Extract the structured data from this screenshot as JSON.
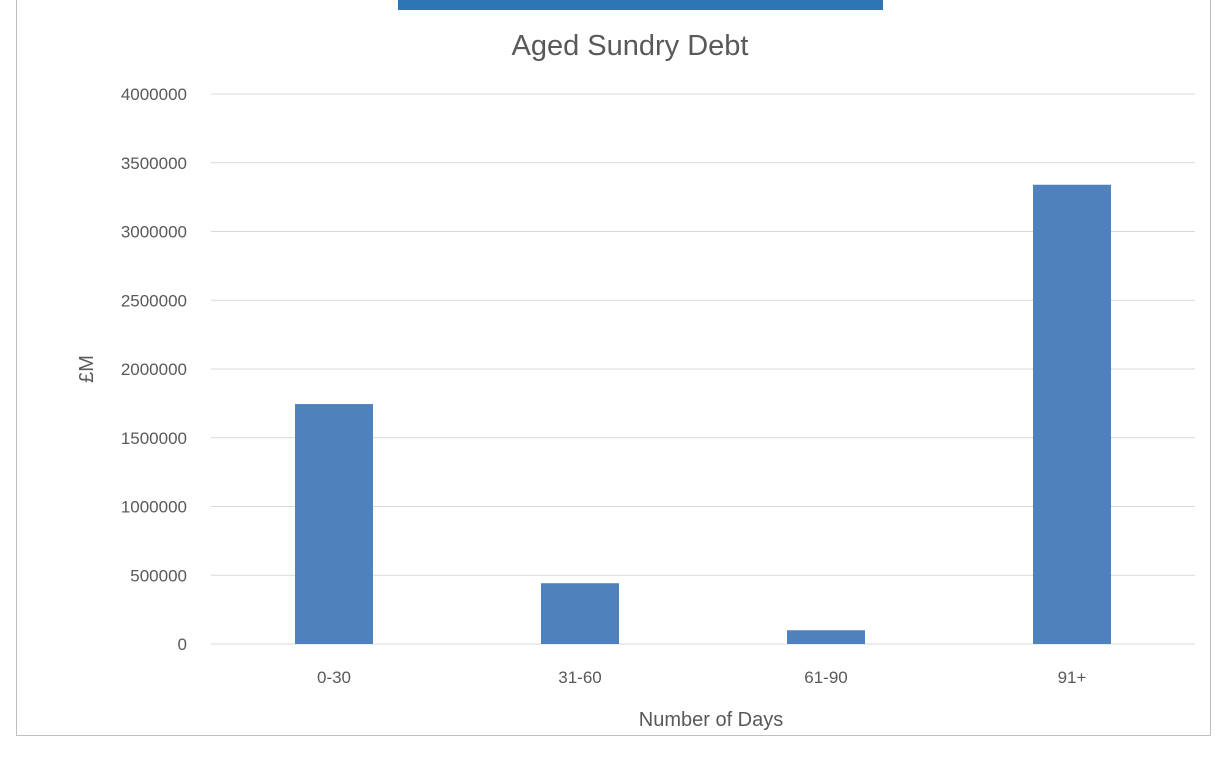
{
  "colors": {
    "bar": "#4f81bd",
    "header_strip": "#2e75b6",
    "grid": "#d9d9d9",
    "text": "#595959"
  },
  "chart_data": {
    "type": "bar",
    "title": "Aged Sundry Debt",
    "xlabel": "Number of Days",
    "ylabel": "£M",
    "categories": [
      "0-30",
      "31-60",
      "61-90",
      "91+"
    ],
    "values": [
      1745000,
      442000,
      100000,
      3340000
    ],
    "ylim": [
      0,
      4000000
    ],
    "yticks": [
      "0",
      "500000",
      "1000000",
      "1500000",
      "2000000",
      "2500000",
      "3000000",
      "3500000",
      "4000000"
    ],
    "grid": true,
    "legend": "none"
  }
}
